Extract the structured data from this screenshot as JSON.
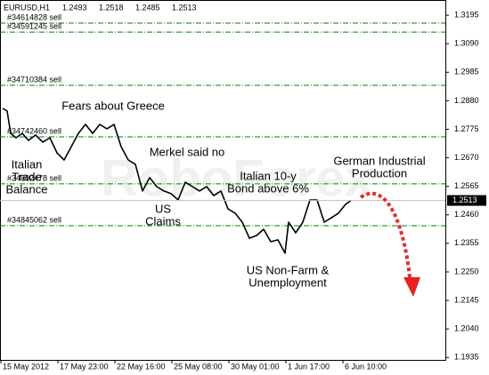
{
  "chart_data": {
    "type": "line",
    "symbol": "EURUSD,H1",
    "ohlc": [
      1.2493,
      1.2518,
      1.2485,
      1.2513
    ],
    "watermark": "RoboForex",
    "xlim": [
      0,
      500
    ],
    "xticks": [
      {
        "value": 0,
        "label": "15 May 2012"
      },
      {
        "value": 64,
        "label": "17 May 23:00"
      },
      {
        "value": 128,
        "label": "22 May 16:00"
      },
      {
        "value": 192,
        "label": "25 May 08:00"
      },
      {
        "value": 256,
        "label": "30 May 01:00"
      },
      {
        "value": 320,
        "label": "1 Jun 17:00"
      },
      {
        "value": 384,
        "label": "6 Jun 10:00"
      }
    ],
    "ylim": [
      1.1926,
      1.3251
    ],
    "yticks": [
      1.3195,
      {
        "value": 1.309,
        "label": "1.3090"
      },
      1.2985,
      {
        "value": 1.288,
        "label": "1.2880"
      },
      1.2775,
      {
        "value": 1.267,
        "label": "1.2670"
      },
      1.2565,
      {
        "value": 1.246,
        "label": "1.2460"
      },
      1.2355,
      {
        "value": 1.225,
        "label": "1.2250"
      },
      1.2145,
      {
        "value": 1.204,
        "label": "1.2040"
      },
      1.1935
    ],
    "series": [
      {
        "color": "#000000",
        "x": [
          3,
          8,
          12,
          18,
          25,
          32,
          40,
          48,
          56,
          64,
          72,
          80,
          88,
          96,
          104,
          112,
          120,
          128,
          136,
          144,
          152,
          160,
          168,
          176,
          184,
          192,
          200,
          208,
          216,
          224,
          232,
          240,
          248,
          256,
          264,
          272,
          280,
          288,
          296,
          304,
          312,
          320,
          324,
          332,
          340,
          348,
          356,
          364,
          372,
          380,
          388,
          394
        ],
        "values": [
          1.2852,
          1.2842,
          1.276,
          1.2744,
          1.276,
          1.2734,
          1.2754,
          1.2728,
          1.2744,
          1.2688,
          1.2662,
          1.2711,
          1.276,
          1.2793,
          1.276,
          1.2793,
          1.2777,
          1.2793,
          1.2711,
          1.2662,
          1.2646,
          1.2548,
          1.2597,
          1.2564,
          1.2548,
          1.2538,
          1.2515,
          1.258,
          1.2564,
          1.2548,
          1.2564,
          1.2531,
          1.2548,
          1.2482,
          1.2466,
          1.2433,
          1.2374,
          1.2384,
          1.2407,
          1.2361,
          1.2368,
          1.2319,
          1.2433,
          1.2394,
          1.2433,
          1.2515,
          1.2515,
          1.2433,
          1.2449,
          1.2466,
          1.2499,
          1.2513
        ]
      }
    ],
    "level_color": "#008000",
    "levels": [
      {
        "label": "#34614828 sell",
        "value": 1.3166
      },
      {
        "label": "#34591245 sell",
        "value": 1.3133
      },
      {
        "label": "#34710384 sell",
        "value": 1.2937
      },
      {
        "label": "#34742460 sell",
        "value": 1.2747
      },
      {
        "label": "#34802478 sell",
        "value": 1.2574
      },
      {
        "label": "#34845062 sell",
        "value": 1.242
      }
    ],
    "annotations": [
      [
        "Fears about Greece"
      ],
      [
        "Italian",
        "Trade",
        "Balance"
      ],
      [
        "Merkel said no"
      ],
      [
        "US",
        "Claims"
      ],
      [
        "Italian 10-y",
        "Bond above 6%"
      ],
      [
        "German Industrial",
        "Production"
      ],
      [
        "US Non-Farm &",
        "Unemployment"
      ]
    ]
  }
}
